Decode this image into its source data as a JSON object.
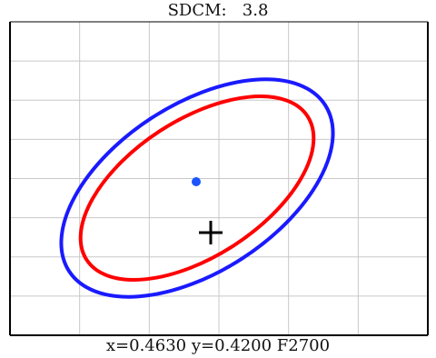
{
  "title": "SDCM:   3.8",
  "readout": "x=0.4630 y=0.4200 F2700",
  "colors": {
    "outer_ellipse": "#1a1aff",
    "inner_ellipse": "#ff0000",
    "center_dot": "#1a55ff",
    "crosshair": "#000000",
    "grid": "#c8c8c8",
    "frame": "#000000"
  },
  "chart_data": {
    "type": "scatter",
    "grid": true,
    "grid_cols": 6,
    "grid_rows": 8,
    "center_dot": {
      "shape": "dot"
    },
    "crosshair": {
      "shape": "plus",
      "x": 0.463,
      "y": 0.42
    },
    "ellipses": [
      {
        "ring": "outer",
        "color": "blue"
      },
      {
        "ring": "inner",
        "color": "red"
      }
    ]
  }
}
